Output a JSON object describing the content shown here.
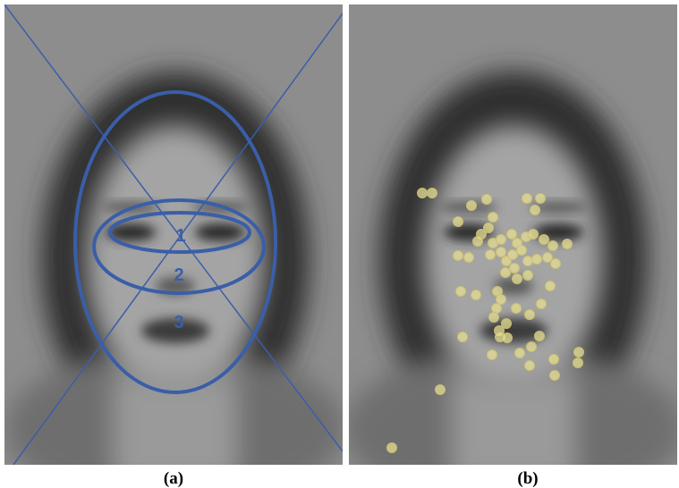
{
  "panels": [
    {
      "label": "(a)",
      "regions": [
        "1",
        "2",
        "3"
      ]
    },
    {
      "label": "(b)"
    }
  ]
}
